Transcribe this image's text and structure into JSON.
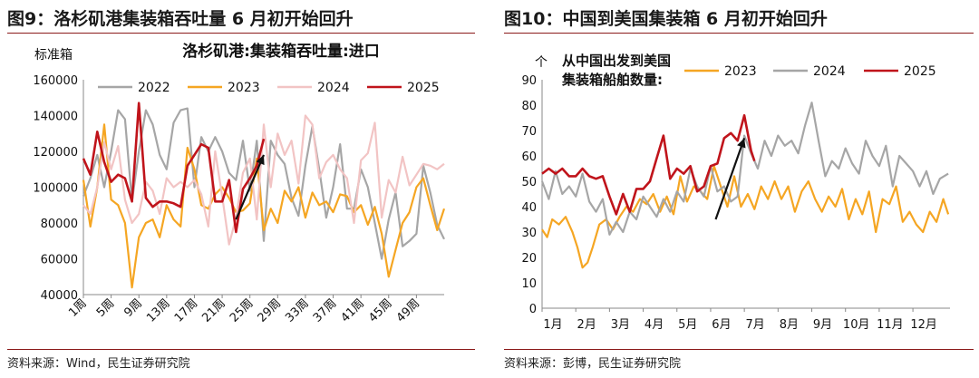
{
  "left": {
    "figure_title": "图9：洛杉矶港集装箱吞吐量 6 月初开始回升",
    "source": "资料来源：Wind，民生证券研究院"
  },
  "right": {
    "figure_title": "图10：中国到美国集装箱 6 月初开始回升",
    "source": "资料来源：彭博，民生证券研究院"
  },
  "colors": {
    "2022": "#a6a6a6",
    "2023": "#f5a623",
    "2024": "#f2c4c4",
    "2025": "#c0141b",
    "2024_right": "#a6a6a6",
    "rule": "#8b1a1a"
  },
  "chart_data": [
    {
      "type": "line",
      "title": "洛杉矶港:集装箱吞吐量:进口",
      "ylabel": "标准箱",
      "xlabel": "",
      "ylim": [
        40000,
        160000
      ],
      "yticks": [
        "160000",
        "140000",
        "120000",
        "100000",
        "80000",
        "60000",
        "40000"
      ],
      "xlim": [
        1,
        53
      ],
      "xticks": [
        "1周",
        "5周",
        "9周",
        "13周",
        "17周",
        "21周",
        "25周",
        "29周",
        "33周",
        "37周",
        "41周",
        "45周",
        "49周"
      ],
      "legend": "top",
      "grid": false,
      "annotation": "arrow pointing upward near weeks 22-27",
      "series": [
        {
          "name": "2022",
          "x": [
            1,
            2,
            3,
            4,
            5,
            6,
            7,
            8,
            9,
            10,
            11,
            12,
            13,
            14,
            15,
            16,
            17,
            18,
            19,
            20,
            21,
            22,
            23,
            24,
            25,
            26,
            27,
            28,
            29,
            30,
            31,
            32,
            33,
            34,
            35,
            36,
            37,
            38,
            39,
            40,
            41,
            42,
            43,
            44,
            45,
            46,
            47,
            48,
            49,
            50,
            51,
            52,
            53
          ],
          "values": [
            95000,
            105000,
            118000,
            100000,
            120000,
            143000,
            138000,
            92000,
            120000,
            143000,
            135000,
            118000,
            110000,
            136000,
            143000,
            144000,
            100000,
            128000,
            120000,
            128000,
            120000,
            108000,
            104000,
            126000,
            98000,
            126000,
            70000,
            126000,
            118000,
            113000,
            94000,
            84000,
            112000,
            134000,
            110000,
            83000,
            100000,
            124000,
            88000,
            88000,
            110000,
            100000,
            80000,
            60000,
            82000,
            97000,
            67000,
            70000,
            74000,
            112000,
            97000,
            79000,
            71000
          ]
        },
        {
          "name": "2023",
          "x": [
            1,
            2,
            3,
            4,
            5,
            6,
            7,
            8,
            9,
            10,
            11,
            12,
            13,
            14,
            15,
            16,
            17,
            18,
            19,
            20,
            21,
            22,
            23,
            24,
            25,
            26,
            27,
            28,
            29,
            30,
            31,
            32,
            33,
            34,
            35,
            36,
            37,
            38,
            39,
            40,
            41,
            42,
            43,
            44,
            45,
            46,
            47,
            48,
            49,
            50,
            51,
            52,
            53
          ],
          "values": [
            104000,
            78000,
            100000,
            135000,
            93000,
            90000,
            80000,
            44000,
            72000,
            80000,
            82000,
            72000,
            90000,
            82000,
            78000,
            122000,
            110000,
            90000,
            88000,
            96000,
            100000,
            94000,
            86000,
            87000,
            91000,
            116000,
            76000,
            88000,
            80000,
            98000,
            92000,
            100000,
            83000,
            97000,
            90000,
            92000,
            86000,
            96000,
            95000,
            86000,
            90000,
            79000,
            89000,
            74000,
            50000,
            65000,
            80000,
            86000,
            100000,
            105000,
            90000,
            76000,
            88000
          ]
        },
        {
          "name": "2024",
          "x": [
            1,
            2,
            3,
            4,
            5,
            6,
            7,
            8,
            9,
            10,
            11,
            12,
            13,
            14,
            15,
            16,
            17,
            18,
            19,
            20,
            21,
            22,
            23,
            24,
            25,
            26,
            27,
            28,
            29,
            30,
            31,
            32,
            33,
            34,
            35,
            36,
            37,
            38,
            39,
            40,
            41,
            42,
            43,
            44,
            45,
            46,
            47,
            48,
            49,
            50,
            51,
            52,
            53
          ],
          "values": [
            90000,
            85000,
            100000,
            125000,
            110000,
            123000,
            93000,
            80000,
            85000,
            103000,
            98000,
            85000,
            105000,
            100000,
            103000,
            100000,
            104000,
            96000,
            78000,
            120000,
            95000,
            68000,
            83000,
            108000,
            116000,
            82000,
            135000,
            100000,
            130000,
            118000,
            126000,
            102000,
            140000,
            135000,
            105000,
            114000,
            118000,
            110000,
            105000,
            80000,
            115000,
            119000,
            136000,
            83000,
            104000,
            97000,
            117000,
            101000,
            107000,
            113000,
            112000,
            110000,
            113000
          ]
        },
        {
          "name": "2025",
          "x": [
            1,
            2,
            3,
            4,
            5,
            6,
            7,
            8,
            9,
            10,
            11,
            12,
            13,
            14,
            15,
            16,
            17,
            18,
            19,
            20,
            21,
            22,
            23,
            24,
            25,
            26,
            27
          ],
          "values": [
            116000,
            107000,
            131000,
            114000,
            103000,
            107000,
            105000,
            92000,
            147000,
            94000,
            89000,
            92000,
            92000,
            91000,
            89000,
            112000,
            118000,
            124000,
            122000,
            92000,
            92000,
            104000,
            75000,
            99000,
            105000,
            112000,
            127000
          ]
        }
      ]
    },
    {
      "type": "line",
      "title": "从中国出发到美国集装箱船舶数量:",
      "ylabel": "个",
      "xlabel": "",
      "ylim": [
        0,
        90
      ],
      "yticks": [
        "90",
        "80",
        "70",
        "60",
        "50",
        "40",
        "30",
        "20",
        "10",
        "0"
      ],
      "xticks": [
        "1月",
        "2月",
        "3月",
        "4月",
        "5月",
        "6月",
        "7月",
        "8月",
        "9月",
        "10月",
        "11月",
        "12月"
      ],
      "xlim": [
        1,
        13.1
      ],
      "legend": "top",
      "grid": false,
      "annotation": "arrow pointing upward near June-July",
      "series": [
        {
          "name": "2023",
          "x": [
            1,
            1.15,
            1.3,
            1.5,
            1.7,
            1.9,
            2.05,
            2.2,
            2.35,
            2.5,
            2.7,
            2.9,
            3.1,
            3.3,
            3.5,
            3.7,
            3.9,
            4.1,
            4.3,
            4.5,
            4.7,
            4.9,
            5.1,
            5.3,
            5.5,
            5.7,
            5.9,
            6.1,
            6.3,
            6.5,
            6.7,
            6.9,
            7.1,
            7.3,
            7.5,
            7.7,
            7.9,
            8.1,
            8.3,
            8.5,
            8.7,
            8.9,
            9.1,
            9.3,
            9.5,
            9.7,
            9.9,
            10.1,
            10.3,
            10.5,
            10.7,
            10.9,
            11.1,
            11.3,
            11.5,
            11.7,
            11.9,
            12.1,
            12.3,
            12.5,
            12.7,
            12.9,
            13.05
          ],
          "values": [
            31,
            28,
            35,
            33,
            36,
            30,
            24,
            16,
            18,
            24,
            33,
            35,
            31,
            36,
            40,
            38,
            43,
            41,
            45,
            38,
            44,
            37,
            52,
            42,
            48,
            46,
            43,
            56,
            48,
            40,
            52,
            40,
            45,
            39,
            48,
            43,
            50,
            43,
            48,
            38,
            46,
            50,
            43,
            38,
            44,
            40,
            47,
            35,
            43,
            37,
            46,
            30,
            43,
            41,
            48,
            34,
            38,
            33,
            30,
            38,
            34,
            43,
            37
          ]
        },
        {
          "name": "2024",
          "x": [
            1,
            1.2,
            1.4,
            1.6,
            1.8,
            2,
            2.2,
            2.4,
            2.6,
            2.8,
            3,
            3.2,
            3.4,
            3.6,
            3.8,
            4,
            4.2,
            4.4,
            4.6,
            4.8,
            5,
            5.2,
            5.4,
            5.6,
            5.8,
            6,
            6.2,
            6.4,
            6.6,
            6.8,
            7,
            7.2,
            7.4,
            7.6,
            7.8,
            8,
            8.2,
            8.4,
            8.6,
            8.8,
            9,
            9.2,
            9.4,
            9.6,
            9.8,
            10,
            10.2,
            10.4,
            10.6,
            10.8,
            11,
            11.2,
            11.4,
            11.6,
            11.8,
            12,
            12.2,
            12.4,
            12.6,
            12.8,
            13.05
          ],
          "values": [
            50,
            43,
            54,
            45,
            48,
            44,
            53,
            42,
            38,
            43,
            29,
            34,
            30,
            38,
            35,
            44,
            40,
            36,
            43,
            38,
            46,
            42,
            55,
            48,
            44,
            56,
            46,
            48,
            42,
            44,
            68,
            61,
            55,
            66,
            60,
            68,
            64,
            66,
            61,
            72,
            81,
            66,
            52,
            58,
            55,
            63,
            57,
            53,
            66,
            60,
            56,
            64,
            48,
            60,
            57,
            54,
            48,
            54,
            45,
            51,
            53
          ]
        },
        {
          "name": "2025",
          "x": [
            1,
            1.2,
            1.4,
            1.6,
            1.8,
            2,
            2.2,
            2.4,
            2.6,
            2.8,
            3,
            3.2,
            3.4,
            3.6,
            3.8,
            4,
            4.2,
            4.4,
            4.6,
            4.8,
            5,
            5.2,
            5.4,
            5.6,
            5.8,
            6,
            6.2,
            6.4,
            6.6,
            6.8,
            7,
            7.2,
            7.3
          ],
          "values": [
            53,
            55,
            53,
            55,
            52,
            52,
            55,
            52,
            51,
            52,
            44,
            37,
            45,
            38,
            47,
            47,
            50,
            59,
            68,
            51,
            55,
            53,
            56,
            46,
            48,
            56,
            57,
            67,
            69,
            66,
            76,
            62,
            58
          ]
        }
      ]
    }
  ]
}
